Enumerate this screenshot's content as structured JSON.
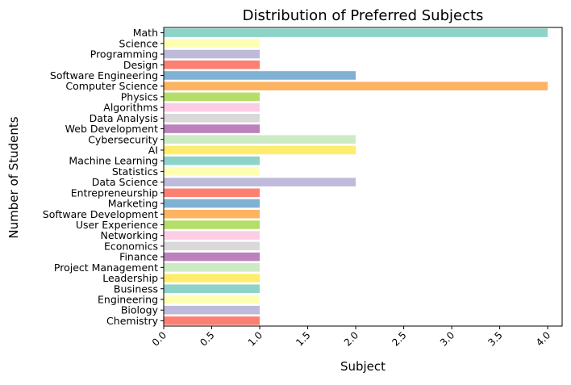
{
  "chart_data": {
    "type": "bar",
    "orientation": "horizontal",
    "title": "Distribution of Preferred Subjects",
    "xlabel": "Subject",
    "ylabel": "Number of Students",
    "xlim": [
      0,
      4.15
    ],
    "xticks": [
      "0.0",
      "0.5",
      "1.0",
      "1.5",
      "2.0",
      "2.5",
      "3.0",
      "3.5",
      "4.0"
    ],
    "grid": false,
    "legend": "none",
    "categories": [
      "Math",
      "Science",
      "Programming",
      "Design",
      "Software Engineering",
      "Computer Science",
      "Physics",
      "Algorithms",
      "Data Analysis",
      "Web Development",
      "Cybersecurity",
      "AI",
      "Machine Learning",
      "Statistics",
      "Data Science",
      "Entrepreneurship",
      "Marketing",
      "Software Development",
      "User Experience",
      "Networking",
      "Economics",
      "Finance",
      "Project Management",
      "Leadership",
      "Business",
      "Engineering",
      "Biology",
      "Chemistry"
    ],
    "values": [
      4,
      1,
      1,
      1,
      2,
      4,
      1,
      1,
      1,
      1,
      2,
      2,
      1,
      1,
      2,
      1,
      1,
      1,
      1,
      1,
      1,
      1,
      1,
      1,
      1,
      1,
      1,
      1
    ],
    "palette": [
      "#8dd3c7",
      "#ffffb3",
      "#bebada",
      "#fb8072",
      "#80b1d3",
      "#fdb462",
      "#b3de69",
      "#fccde5",
      "#d9d9d9",
      "#bc80bd",
      "#ccebc5",
      "#ffed6f"
    ]
  }
}
